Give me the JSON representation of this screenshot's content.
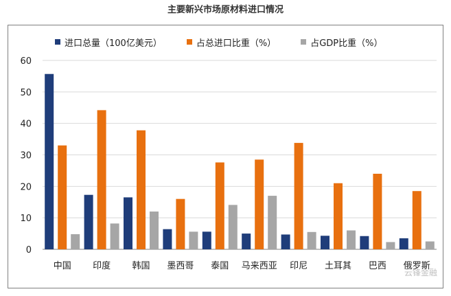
{
  "chart_data": {
    "type": "bar",
    "title": "主要新兴市场原材料进口情况",
    "categories": [
      "中国",
      "印度",
      "韩国",
      "墨西哥",
      "泰国",
      "马来西亚",
      "印尼",
      "土耳其",
      "巴西",
      "俄罗斯"
    ],
    "series": [
      {
        "name": "进口总量（100亿美元）",
        "color": "#1f3d7a",
        "values": [
          55.7,
          17.3,
          16.5,
          6.4,
          5.6,
          5.0,
          4.7,
          4.3,
          4.2,
          3.5
        ]
      },
      {
        "name": "占总进口比重（%）",
        "color": "#e8700f",
        "values": [
          33.0,
          44.2,
          37.8,
          16.0,
          27.6,
          28.5,
          33.8,
          21.0,
          24.0,
          18.5
        ]
      },
      {
        "name": "占GDP比重（%）",
        "color": "#a6a6a6",
        "values": [
          4.8,
          8.2,
          12.0,
          5.6,
          14.1,
          17.0,
          5.5,
          6.0,
          2.3,
          2.5
        ]
      }
    ],
    "yticks": [
      0,
      10,
      20,
      30,
      40,
      50,
      60
    ],
    "ylim": [
      0,
      60
    ],
    "grid": true,
    "legend": "top"
  },
  "watermark": "云锋金融"
}
